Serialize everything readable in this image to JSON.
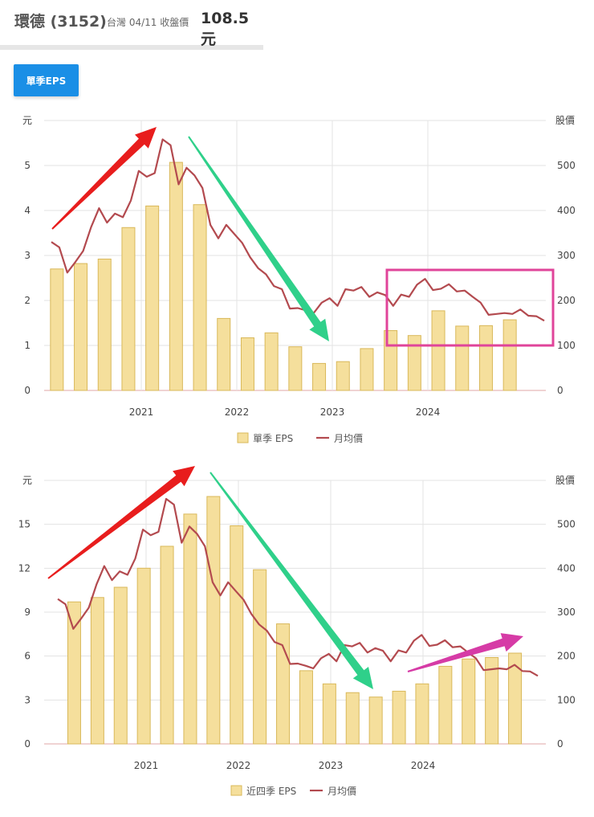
{
  "header": {
    "name": "環德 (3152)",
    "meta": "台灣 04/11 收盤價",
    "price": "108.5 元"
  },
  "tab": {
    "label": "單季EPS"
  },
  "colors": {
    "bar": "#f5df9c",
    "bar_border": "#d9b85a",
    "line": "#b34a4f",
    "grid": "#e3e3e3",
    "tab": "#1a8fe6"
  },
  "chart_data": [
    {
      "type": "bar",
      "title": "單季 EPS",
      "ylabel_left": "元",
      "ylabel_right": "股價",
      "left_ticks": [
        "0",
        "1",
        "2",
        "3",
        "4",
        "5"
      ],
      "left_max": 6,
      "right_ticks": [
        "0",
        "100",
        "200",
        "300",
        "400",
        "500"
      ],
      "right_max": 600,
      "year_labels": [
        "2021",
        "2022",
        "2023",
        "2024"
      ],
      "legend": [
        "單季 EPS",
        "月均價"
      ],
      "bar_series": {
        "name": "單季 EPS",
        "values": [
          2.7,
          2.82,
          2.92,
          3.62,
          4.1,
          5.07,
          4.13,
          1.6,
          1.17,
          1.28,
          0.97,
          0.6,
          0.64,
          0.93,
          1.33,
          1.22,
          1.77,
          1.43,
          1.44,
          1.57
        ]
      },
      "line_series": {
        "name": "月均價",
        "values": [
          330,
          318,
          262,
          285,
          310,
          363,
          405,
          373,
          393,
          385,
          422,
          488,
          475,
          483,
          558,
          545,
          458,
          495,
          478,
          450,
          368,
          338,
          368,
          348,
          328,
          296,
          272,
          258,
          232,
          225,
          182,
          183,
          178,
          172,
          195,
          205,
          188,
          225,
          222,
          230,
          208,
          218,
          212,
          188,
          213,
          208,
          235,
          248,
          223,
          226,
          236,
          220,
          222,
          208,
          195,
          168,
          170,
          172,
          170,
          180,
          166,
          165,
          155
        ]
      }
    },
    {
      "type": "bar",
      "title": "近四季 EPS",
      "ylabel_left": "元",
      "ylabel_right": "股價",
      "left_ticks": [
        "0",
        "3",
        "6",
        "9",
        "12",
        "15"
      ],
      "left_max": 18,
      "right_ticks": [
        "0",
        "100",
        "200",
        "300",
        "400",
        "500"
      ],
      "right_max": 600,
      "year_labels": [
        "2021",
        "2022",
        "2023",
        "2024"
      ],
      "legend": [
        "近四季 EPS",
        "月均價"
      ],
      "bar_series": {
        "name": "近四季 EPS",
        "values": [
          9.7,
          10.0,
          10.7,
          12.0,
          13.5,
          15.7,
          16.9,
          14.9,
          11.9,
          8.2,
          5.0,
          4.1,
          3.5,
          3.2,
          3.6,
          4.1,
          5.3,
          5.8,
          5.9,
          6.2
        ]
      },
      "line_series": {
        "name": "月均價",
        "values": [
          330,
          318,
          262,
          285,
          310,
          363,
          405,
          373,
          393,
          385,
          422,
          488,
          475,
          483,
          558,
          545,
          458,
          495,
          478,
          450,
          368,
          338,
          368,
          348,
          328,
          296,
          272,
          258,
          232,
          225,
          182,
          183,
          178,
          172,
          195,
          205,
          188,
          225,
          222,
          230,
          208,
          218,
          212,
          188,
          213,
          208,
          235,
          248,
          223,
          226,
          236,
          220,
          222,
          208,
          195,
          168,
          170,
          172,
          170,
          180,
          166,
          165,
          155
        ]
      }
    }
  ]
}
